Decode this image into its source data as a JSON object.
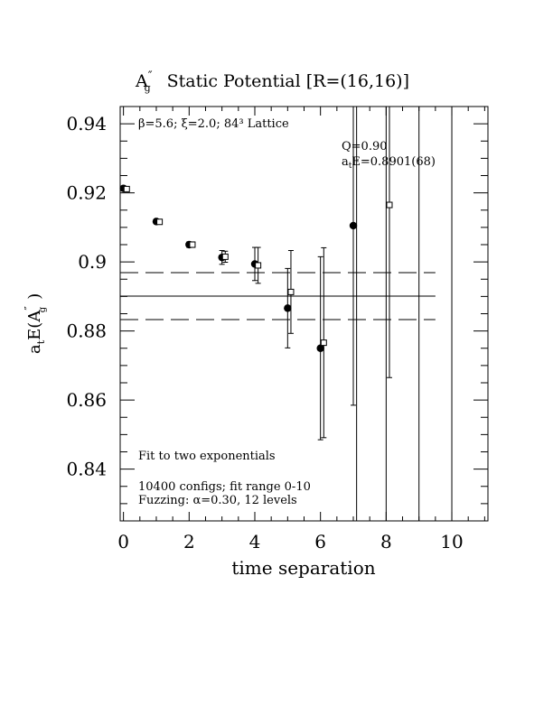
{
  "chart_data": {
    "type": "scatter",
    "title_main": "Static Potential [R=(16,16)]",
    "title_symbol": "A",
    "title_prime": "″",
    "title_sub": "g",
    "xlabel": "time separation",
    "ylabel_main": "a",
    "ylabel_sub": "t",
    "ylabel_rest": "E(A",
    "ylabel_prime": "″",
    "ylabel_sub2": "g",
    "ylabel_close": ")",
    "xlim": [
      -0.1,
      11.1
    ],
    "ylim": [
      0.825,
      0.945
    ],
    "x_ticks": [
      0,
      2,
      4,
      6,
      8,
      10
    ],
    "x_tick_labels": [
      "0",
      "2",
      "4",
      "6",
      "8",
      "10"
    ],
    "y_ticks": [
      0.84,
      0.86,
      0.88,
      0.9,
      0.92,
      0.94
    ],
    "y_tick_labels": [
      "0.84",
      "0.86",
      "0.88",
      "0.9",
      "0.92",
      "0.94"
    ],
    "annotations": {
      "lattice": "β=5.6; ξ=2.0; 84³ Lattice",
      "q": "Q=0.90",
      "energy_prefix": "a",
      "energy_sub": "t",
      "energy_rest": "E=0.8901(68)",
      "fit": "Fit to two exponentials",
      "configs": "10400 configs; fit range 0-10",
      "fuzzing": "Fuzzing: α=0.30, 12 levels"
    },
    "fit": {
      "value": 0.8901,
      "error": 0.0068,
      "x_range": [
        0,
        9.5
      ]
    },
    "series": [
      {
        "marker": "filled-circle",
        "points": [
          {
            "x": 0,
            "y": 0.9213,
            "err": 0.0005
          },
          {
            "x": 1,
            "y": 0.9117,
            "err": 0.0007
          },
          {
            "x": 2,
            "y": 0.905,
            "err": 0.0008
          },
          {
            "x": 3,
            "y": 0.9013,
            "err": 0.002
          },
          {
            "x": 4,
            "y": 0.8994,
            "err": 0.0048
          },
          {
            "x": 5,
            "y": 0.8866,
            "err": 0.0115
          },
          {
            "x": 6,
            "y": 0.875,
            "err": 0.0265
          },
          {
            "x": 7,
            "y": 0.9105,
            "err": 0.052
          },
          {
            "x": 8,
            "y": null,
            "err": 0.3
          },
          {
            "x": 9,
            "y": null,
            "err": 0.3
          }
        ]
      },
      {
        "marker": "open-square",
        "points": [
          {
            "x": 0.1,
            "y": 0.9211,
            "err": 0.0005
          },
          {
            "x": 1.1,
            "y": 0.9116,
            "err": 0.0007
          },
          {
            "x": 2.1,
            "y": 0.905,
            "err": 0.0008
          },
          {
            "x": 3.1,
            "y": 0.9015,
            "err": 0.0016
          },
          {
            "x": 4.1,
            "y": 0.899,
            "err": 0.0052
          },
          {
            "x": 5.1,
            "y": 0.8913,
            "err": 0.012
          },
          {
            "x": 6.1,
            "y": 0.8766,
            "err": 0.0275
          },
          {
            "x": 7.1,
            "y": null,
            "err": 0.3
          },
          {
            "x": 8.1,
            "y": 0.9165,
            "err": 0.05
          },
          {
            "x": 10.0,
            "y": null,
            "err": 0.3
          }
        ]
      }
    ]
  }
}
